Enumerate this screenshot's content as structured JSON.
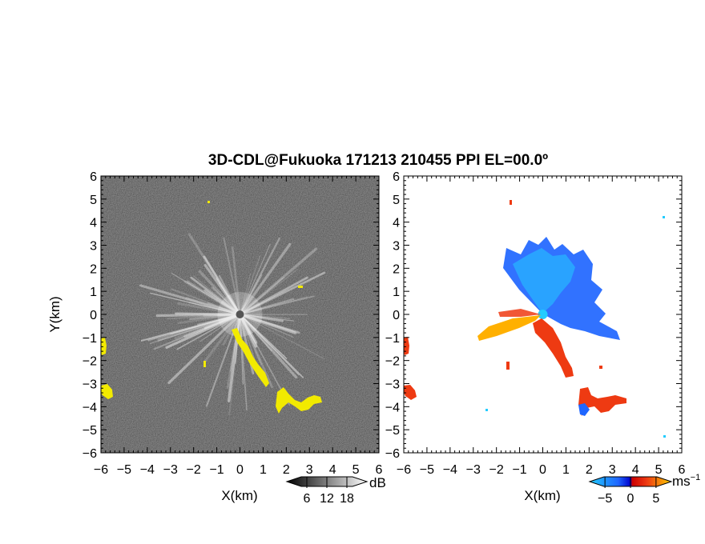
{
  "title": "3D-CDL@Fukuoka 171213 210455 PPI EL=00.0º",
  "chart_data": [
    {
      "type": "heatmap",
      "panel": "left",
      "quantity": "reflectivity",
      "xlabel": "X(km)",
      "ylabel": "Y(km)",
      "xlim": [
        -6,
        6
      ],
      "ylim": [
        -6,
        6
      ],
      "x_ticks": [
        "−6",
        "−5",
        "−4",
        "−3",
        "−2",
        "−1",
        "0",
        "1",
        "2",
        "3",
        "4",
        "5",
        "6"
      ],
      "y_ticks": [
        "6",
        "5",
        "4",
        "3",
        "2",
        "1",
        "0",
        "−1",
        "−2",
        "−3",
        "−4",
        "−5",
        "−6"
      ],
      "background_color": "#262626",
      "highlight_color": "#f2ea00",
      "colorbar": {
        "unit": "dB",
        "ticks": [
          "6",
          "12",
          "18"
        ],
        "tick_values": [
          6,
          12,
          18
        ],
        "range": [
          0,
          24
        ]
      }
    },
    {
      "type": "heatmap",
      "panel": "right",
      "quantity": "radial velocity",
      "xlabel": "X(km)",
      "xlim": [
        -6,
        6
      ],
      "ylim": [
        -6,
        6
      ],
      "x_ticks": [
        "−6",
        "−5",
        "−4",
        "−3",
        "−2",
        "−1",
        "0",
        "1",
        "2",
        "3",
        "4",
        "5",
        "6"
      ],
      "y_ticks": [
        "6",
        "5",
        "4",
        "3",
        "2",
        "1",
        "0",
        "−1",
        "−2",
        "−3",
        "−4",
        "−5",
        "−6"
      ],
      "colors": {
        "negative": "#1f66ff",
        "positive": "#ee3a12",
        "light_negative": "#22ccff",
        "light_positive": "#ffb000"
      },
      "colorbar": {
        "unit": "ms",
        "unit_exp": "−1",
        "ticks": [
          "−5",
          "0",
          "5"
        ],
        "tick_values": [
          -5,
          0,
          5
        ],
        "range": [
          -8,
          8
        ]
      }
    }
  ]
}
